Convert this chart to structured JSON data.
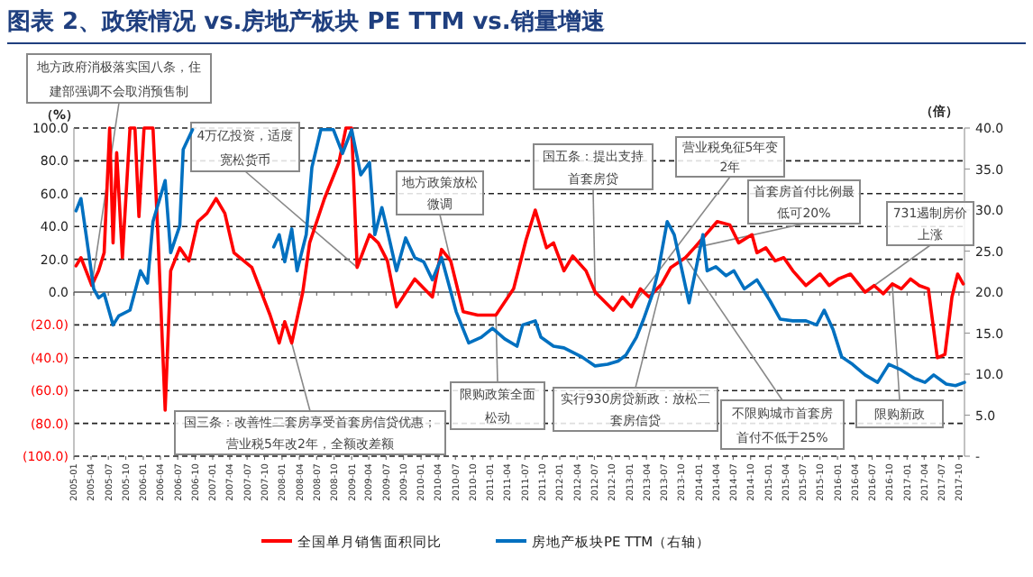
{
  "chart_data": {
    "type": "line",
    "title": "图表 2、政策情况 vs.房地产板块 PE TTM vs.销量增速",
    "ylabel": "（%）",
    "y2label": "（倍）",
    "xlim": [
      "2005-01-01",
      "2017-10-30"
    ],
    "ylim": [
      -100,
      100
    ],
    "y2lim": [
      0,
      40
    ],
    "grid": "y",
    "legend": "bottom",
    "yticks": [
      {
        "value": 100,
        "label": "100.0"
      },
      {
        "value": 80,
        "label": "80.0"
      },
      {
        "value": 60,
        "label": "60.0"
      },
      {
        "value": 40,
        "label": "40.0"
      },
      {
        "value": 20,
        "label": "20.0"
      },
      {
        "value": 0,
        "label": "0.0"
      },
      {
        "value": -20,
        "label": "(20.0)"
      },
      {
        "value": -40,
        "label": "(40.0)"
      },
      {
        "value": -60,
        "label": "(60.0)"
      },
      {
        "value": -80,
        "label": "(80.0)"
      },
      {
        "value": -100,
        "label": "(100.0)"
      }
    ],
    "y2ticks": [
      {
        "value": 40,
        "label": "40.0"
      },
      {
        "value": 35,
        "label": "35.0"
      },
      {
        "value": 30,
        "label": "30.0"
      },
      {
        "value": 25,
        "label": "25.0"
      },
      {
        "value": 20,
        "label": "20.0"
      },
      {
        "value": 15,
        "label": "15.0"
      },
      {
        "value": 10,
        "label": "10.0"
      },
      {
        "value": 5,
        "label": "5.0"
      },
      {
        "value": 0,
        "label": "-"
      }
    ],
    "xticks": [
      "2005-01",
      "2005-04",
      "2005-07",
      "2005-10",
      "2006-01",
      "2006-04",
      "2006-07",
      "2006-10",
      "2007-01",
      "2007-04",
      "2007-07",
      "2007-10",
      "2008-01",
      "2008-04",
      "2008-07",
      "2008-10",
      "2009-01",
      "2009-04",
      "2009-07",
      "2009-10",
      "2010-01",
      "2010-04",
      "2010-07",
      "2010-10",
      "2011-01",
      "2011-04",
      "2011-07",
      "2011-10",
      "2012-01",
      "2012-04",
      "2012-07",
      "2012-10",
      "2013-01",
      "2013-04",
      "2013-07",
      "2013-10",
      "2014-01",
      "2014-04",
      "2014-07",
      "2014-10",
      "2015-01",
      "2015-04",
      "2015-07",
      "2015-10",
      "2016-01",
      "2016-04",
      "2016-07",
      "2016-10",
      "2017-01",
      "2017-04",
      "2017-07",
      "2017-10"
    ],
    "series": [
      {
        "name": "全国单月销售面积同比",
        "color": "#ff0000",
        "x": [
          "2005-01-12",
          "2005-02-07",
          "2005-03-06",
          "2005-04-05",
          "2005-05-11",
          "2005-06-09",
          "2005-07-08",
          "2005-07-26",
          "2005-08-14",
          "2005-09-13",
          "2005-10-23",
          "2005-11-18",
          "2005-12-09",
          "2006-01-05",
          "2006-02-21",
          "2006-03-20",
          "2006-04-26",
          "2006-05-25",
          "2006-07-12",
          "2006-08-29",
          "2006-10-15",
          "2006-12-02",
          "2007-01-19",
          "2007-03-06",
          "2007-04-23",
          "2007-07-26",
          "2007-10-30",
          "2007-12-17",
          "2008-01-15",
          "2008-02-21",
          "2008-04-19",
          "2008-05-25",
          "2008-08-11",
          "2008-10-26",
          "2008-12-02",
          "2009-01-01",
          "2009-01-30",
          "2009-04-05",
          "2009-05-21",
          "2009-07-08",
          "2009-08-25",
          "2009-11-29",
          "2010-03-02",
          "2010-04-19",
          "2010-06-06",
          "2010-08-11",
          "2010-10-26",
          "2011-01-30",
          "2011-05-03",
          "2011-07-08",
          "2011-08-25",
          "2011-10-23",
          "2011-11-29",
          "2012-01-23",
          "2012-03-09",
          "2012-05-18",
          "2012-07-05",
          "2012-10-08",
          "2012-11-25",
          "2013-01-12",
          "2013-02-28",
          "2013-04-15",
          "2013-06-20",
          "2013-08-07",
          "2013-10-23",
          "2013-12-09",
          "2014-04-08",
          "2014-06-13",
          "2014-07-30",
          "2014-10-08",
          "2014-11-03",
          "2014-12-20",
          "2015-02-07",
          "2015-03-24",
          "2015-05-11",
          "2015-07-19",
          "2015-10-01",
          "2015-11-18",
          "2016-01-05",
          "2016-03-09",
          "2016-05-25",
          "2016-07-12",
          "2016-08-29",
          "2016-10-15",
          "2016-12-02",
          "2017-01-19",
          "2017-03-06",
          "2017-04-23",
          "2017-06-09",
          "2017-07-19",
          "2017-08-25",
          "2017-09-24",
          "2017-10-23"
        ],
        "values": [
          16,
          21,
          13,
          4,
          13,
          24,
          100,
          30,
          85,
          21,
          100,
          100,
          46,
          100,
          100,
          32,
          -72,
          13,
          27,
          19,
          43,
          48,
          57,
          48,
          24,
          15,
          -14,
          -31,
          -18,
          -31,
          0,
          30,
          57,
          79,
          100,
          100,
          15,
          35,
          30,
          19,
          -9,
          8,
          -3,
          26,
          19,
          -12,
          -14,
          -14,
          2,
          32,
          50,
          27,
          30,
          13,
          22,
          13,
          0,
          -11,
          -3,
          -9,
          2,
          -3,
          5,
          15,
          21,
          27,
          43,
          41,
          30,
          35,
          24,
          27,
          19,
          21,
          13,
          4,
          11,
          4,
          8,
          11,
          0,
          4,
          -1,
          5,
          2,
          8,
          4,
          2,
          -40,
          -38,
          -3,
          11,
          5
        ]
      },
      {
        "name": "房地产板块PE TTM（右轴）",
        "color": "#0070c0",
        "axis": "y2",
        "x": [
          "2005-01-12",
          "2005-02-07",
          "2005-03-06",
          "2005-04-15",
          "2005-05-11",
          "2005-06-09",
          "2005-07-26",
          "2005-08-25",
          "2005-10-23",
          "2005-12-17",
          "2006-01-23",
          "2006-02-21",
          "2006-04-26",
          "2006-05-25",
          "2006-07-12",
          "2006-07-30",
          "2006-09-17",
          "2007-11-18",
          "2007-12-17",
          "2008-01-15",
          "2008-02-21",
          "2008-03-20",
          "2008-05-07",
          "2008-06-06",
          "2008-07-23",
          "2008-09-27",
          "2008-11-14",
          "2009-01-01",
          "2009-02-18",
          "2009-04-05",
          "2009-05-03",
          "2009-06-09",
          "2009-07-08",
          "2009-08-25",
          "2009-10-12",
          "2009-11-29",
          "2010-01-15",
          "2010-03-02",
          "2010-04-19",
          "2010-07-05",
          "2010-09-09",
          "2010-11-14",
          "2011-01-12",
          "2011-03-17",
          "2011-05-21",
          "2011-06-20",
          "2011-08-25",
          "2011-09-24",
          "2011-11-29",
          "2012-01-23",
          "2012-04-26",
          "2012-07-05",
          "2012-09-09",
          "2012-11-03",
          "2012-12-13",
          "2013-02-07",
          "2013-03-17",
          "2013-05-03",
          "2013-06-02",
          "2013-07-19",
          "2013-08-25",
          "2013-11-11",
          "2014-01-23",
          "2014-02-14",
          "2014-04-01",
          "2014-05-25",
          "2014-07-05",
          "2014-08-29",
          "2014-11-03",
          "2015-01-12",
          "2015-03-06",
          "2015-05-11",
          "2015-07-19",
          "2015-09-13",
          "2015-10-23",
          "2015-12-09",
          "2016-01-23",
          "2016-03-20",
          "2016-05-25",
          "2016-07-30",
          "2016-09-27",
          "2016-12-02",
          "2017-02-07",
          "2017-04-05",
          "2017-05-21",
          "2017-07-26",
          "2017-09-13",
          "2017-10-30"
        ],
        "values": [
          29.9,
          31.4,
          27.0,
          20.4,
          19.3,
          19.8,
          16.0,
          17.1,
          17.8,
          22.6,
          21.1,
          28.6,
          33.6,
          24.8,
          28.1,
          37.4,
          39.8,
          25.5,
          27.0,
          23.7,
          27.7,
          22.6,
          27.0,
          35.2,
          39.8,
          39.8,
          36.9,
          39.8,
          34.3,
          35.8,
          27.0,
          30.3,
          27.5,
          22.6,
          26.6,
          24.2,
          23.7,
          21.5,
          24.2,
          17.6,
          13.8,
          14.5,
          15.6,
          14.3,
          13.4,
          16.0,
          16.5,
          14.5,
          13.4,
          13.2,
          12.1,
          11.0,
          11.2,
          11.6,
          12.3,
          14.5,
          16.7,
          19.8,
          22.6,
          28.6,
          27.0,
          18.7,
          27.0,
          22.6,
          23.1,
          22.0,
          22.6,
          20.4,
          21.5,
          18.9,
          16.7,
          16.5,
          16.5,
          16.0,
          17.8,
          15.4,
          12.1,
          11.2,
          9.9,
          9.0,
          11.2,
          10.5,
          9.5,
          9.0,
          9.9,
          8.8,
          8.6,
          9.0
        ]
      }
    ],
    "annotations": [
      {
        "text": "地方政府消极落实国八条，住建部强调不会取消预售制",
        "x": "2005-04-05",
        "y": 4
      },
      {
        "text": "4万亿投资，适度宽松货币",
        "x": "2009-01-30",
        "y": 15
      },
      {
        "text": "国三条：改善性二套房享受首套房信贷优惠；营业税5年改2年，全额改差额",
        "x": "2008-02-21",
        "y": -31
      },
      {
        "text": "地方政策放松微调",
        "x": "2010-06-06",
        "y": 19
      },
      {
        "text": "国五条：提出支持首套房贷",
        "x": "2012-07-05",
        "y": 0
      },
      {
        "text": "营业税免征5年变2年",
        "x": "2013-01-12",
        "y": -9
      },
      {
        "text": "首套房首付比例最低可20%",
        "x": "2013-12-09",
        "y": 27
      },
      {
        "text": "731遏制房价上涨",
        "x": "2016-05-25",
        "y": 0
      },
      {
        "text": "限购政策全面松动",
        "x": "2011-01-30",
        "y": -14
      },
      {
        "text": "实行930房贷新政：放松二套房信贷",
        "x": "2013-06-20",
        "y": 5
      },
      {
        "text": "不限购城市首套房首付不低于25%",
        "x": "2013-10-23",
        "y": 21
      },
      {
        "text": "限购新政",
        "x": "2016-10-15",
        "y": 5
      }
    ]
  }
}
